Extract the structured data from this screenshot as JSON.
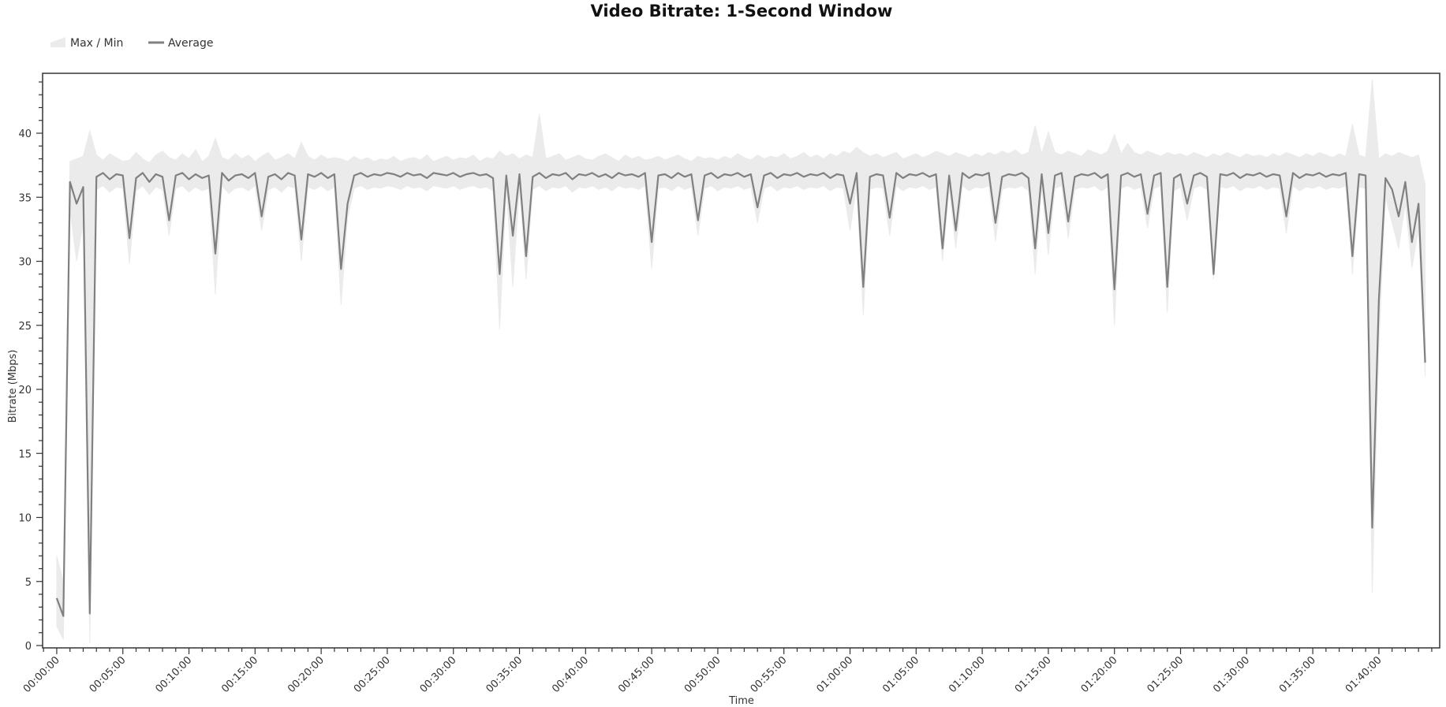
{
  "chart_data": {
    "type": "area",
    "title": "Video Bitrate: 1-Second Window",
    "xlabel": "Time",
    "ylabel": "Bitrate (Mbps)",
    "ylim": [
      0,
      44.7
    ],
    "xlim_minutes": [
      -1.07,
      104.6
    ],
    "y_ticks": [
      0,
      5,
      10,
      15,
      20,
      25,
      30,
      35,
      40
    ],
    "x_ticks": [
      "00:00:00",
      "00:05:00",
      "00:10:00",
      "00:15:00",
      "00:20:00",
      "00:25:00",
      "00:30:00",
      "00:35:00",
      "00:40:00",
      "00:45:00",
      "00:50:00",
      "00:55:00",
      "01:00:00",
      "01:05:00",
      "01:10:00",
      "01:15:00",
      "01:20:00",
      "01:25:00",
      "01:30:00",
      "01:35:00",
      "01:40:00"
    ],
    "grid": false,
    "legend": {
      "placement": "top-left",
      "entries": [
        "Max / Min",
        "Average"
      ]
    },
    "colors": {
      "band": "#ebebeb",
      "average": "#808080",
      "axis": "#333333"
    },
    "series": [
      {
        "name": "Max / Min",
        "kind": "band",
        "max": [
          7.0,
          5.0,
          37.8,
          38.0,
          38.2,
          40.2,
          38.3,
          37.9,
          38.4,
          38.1,
          37.8,
          37.9,
          38.5,
          38.0,
          37.7,
          38.3,
          38.6,
          38.1,
          37.9,
          38.4,
          38.0,
          38.7,
          37.8,
          38.2,
          39.6,
          38.1,
          37.9,
          38.4,
          38.0,
          38.3,
          37.8,
          38.2,
          38.5,
          37.9,
          38.1,
          38.4,
          38.0,
          39.3,
          38.2,
          37.9,
          38.3,
          38.0,
          38.1,
          38.0,
          37.8,
          38.2,
          37.9,
          38.1,
          37.8,
          38.0,
          37.9,
          38.2,
          37.8,
          38.0,
          38.1,
          37.9,
          38.3,
          37.8,
          38.0,
          38.2,
          37.9,
          38.1,
          38.0,
          38.3,
          37.8,
          38.1,
          38.0,
          38.6,
          38.2,
          38.4,
          38.0,
          38.3,
          38.1,
          41.5,
          38.0,
          38.2,
          38.4,
          37.9,
          38.1,
          38.3,
          38.0,
          37.9,
          38.2,
          38.4,
          38.1,
          37.8,
          38.3,
          38.0,
          38.2,
          37.9,
          38.0,
          38.2,
          37.9,
          38.1,
          38.3,
          38.0,
          37.8,
          38.2,
          38.0,
          38.1,
          37.9,
          38.2,
          38.0,
          38.4,
          38.1,
          37.9,
          38.3,
          38.0,
          38.2,
          38.1,
          38.4,
          38.0,
          38.2,
          38.5,
          38.1,
          38.3,
          38.0,
          38.4,
          38.2,
          38.6,
          38.4,
          38.9,
          38.5,
          38.2,
          38.4,
          38.1,
          38.3,
          38.5,
          38.0,
          38.2,
          38.4,
          38.1,
          38.3,
          38.6,
          38.4,
          38.2,
          38.5,
          38.3,
          38.1,
          38.4,
          38.2,
          38.5,
          38.3,
          38.6,
          38.4,
          38.7,
          38.3,
          38.5,
          40.6,
          38.4,
          40.1,
          38.5,
          38.3,
          38.6,
          38.4,
          38.2,
          38.7,
          38.5,
          38.3,
          38.6,
          39.9,
          38.4,
          39.2,
          38.5,
          38.3,
          38.6,
          38.4,
          38.2,
          38.5,
          38.3,
          38.4,
          38.2,
          38.5,
          38.3,
          38.1,
          38.4,
          38.2,
          38.5,
          38.3,
          38.1,
          38.4,
          38.2,
          38.3,
          38.1,
          38.4,
          38.2,
          38.5,
          38.3,
          38.1,
          38.4,
          38.2,
          38.5,
          38.3,
          38.1,
          38.4,
          38.2,
          40.7,
          38.3,
          38.1,
          44.2,
          38.0,
          38.4,
          38.2,
          38.5,
          38.3,
          38.1,
          38.3,
          36.0
        ],
        "min": [
          1.5,
          0.5,
          34.0,
          30.0,
          33.0,
          0.2,
          35.6,
          35.9,
          35.4,
          35.8,
          35.7,
          29.8,
          35.5,
          35.9,
          35.2,
          35.8,
          35.6,
          32.0,
          35.7,
          35.9,
          35.4,
          35.8,
          35.5,
          35.7,
          27.4,
          35.9,
          35.3,
          35.7,
          35.8,
          35.5,
          35.9,
          32.4,
          35.6,
          35.8,
          35.4,
          35.9,
          35.7,
          30.0,
          35.8,
          35.6,
          35.9,
          35.5,
          35.8,
          26.6,
          33.4,
          35.7,
          35.9,
          35.6,
          35.8,
          35.7,
          35.9,
          35.8,
          35.6,
          35.9,
          35.7,
          35.8,
          35.5,
          35.9,
          35.8,
          35.7,
          35.9,
          35.6,
          35.8,
          35.9,
          35.7,
          35.8,
          35.5,
          24.7,
          35.7,
          28.0,
          35.8,
          28.6,
          35.6,
          35.9,
          35.5,
          35.8,
          35.7,
          35.9,
          35.4,
          35.8,
          35.7,
          35.9,
          35.6,
          35.8,
          35.5,
          35.9,
          35.7,
          35.8,
          35.6,
          35.9,
          29.4,
          35.7,
          35.8,
          35.5,
          35.9,
          35.6,
          35.8,
          32.0,
          35.7,
          35.9,
          35.5,
          35.8,
          35.7,
          35.9,
          35.6,
          35.8,
          33.0,
          35.7,
          35.9,
          35.5,
          35.8,
          35.7,
          35.9,
          35.6,
          35.8,
          35.7,
          35.9,
          35.5,
          35.8,
          35.7,
          32.4,
          35.9,
          25.8,
          35.6,
          35.8,
          35.7,
          32.0,
          35.9,
          35.5,
          35.8,
          35.7,
          35.9,
          35.6,
          35.8,
          30.0,
          35.7,
          31.0,
          35.9,
          35.5,
          35.8,
          35.7,
          35.9,
          31.6,
          35.6,
          35.8,
          35.7,
          35.9,
          35.5,
          29.0,
          35.8,
          30.5,
          35.7,
          35.9,
          31.8,
          35.6,
          35.8,
          35.7,
          35.9,
          35.5,
          35.8,
          25.0,
          35.7,
          35.9,
          35.6,
          35.8,
          32.6,
          35.7,
          35.9,
          26.0,
          35.5,
          35.8,
          33.2,
          35.7,
          35.9,
          35.6,
          28.6,
          35.8,
          35.7,
          35.9,
          35.5,
          35.8,
          35.7,
          35.9,
          35.6,
          35.8,
          35.7,
          32.2,
          35.9,
          35.5,
          35.8,
          35.7,
          35.9,
          35.6,
          35.8,
          35.7,
          35.9,
          29.0,
          35.8,
          35.7,
          4.1,
          23.5,
          35.0,
          33.0,
          31.0,
          34.5,
          29.5,
          32.5,
          21.0
        ]
      },
      {
        "name": "Average",
        "kind": "line",
        "values": [
          3.7,
          2.3,
          36.2,
          34.5,
          35.8,
          2.5,
          36.6,
          36.9,
          36.4,
          36.8,
          36.7,
          31.8,
          36.5,
          36.9,
          36.2,
          36.8,
          36.6,
          33.2,
          36.7,
          36.9,
          36.4,
          36.8,
          36.5,
          36.7,
          30.6,
          36.9,
          36.3,
          36.7,
          36.8,
          36.5,
          36.9,
          33.5,
          36.6,
          36.8,
          36.4,
          36.9,
          36.7,
          31.7,
          36.8,
          36.6,
          36.9,
          36.5,
          36.8,
          29.4,
          34.5,
          36.7,
          36.9,
          36.6,
          36.8,
          36.7,
          36.9,
          36.8,
          36.6,
          36.9,
          36.7,
          36.8,
          36.5,
          36.9,
          36.8,
          36.7,
          36.9,
          36.6,
          36.8,
          36.9,
          36.7,
          36.8,
          36.5,
          29.0,
          36.7,
          32.0,
          36.8,
          30.4,
          36.6,
          36.9,
          36.5,
          36.8,
          36.7,
          36.9,
          36.4,
          36.8,
          36.7,
          36.9,
          36.6,
          36.8,
          36.5,
          36.9,
          36.7,
          36.8,
          36.6,
          36.9,
          31.5,
          36.7,
          36.8,
          36.5,
          36.9,
          36.6,
          36.8,
          33.2,
          36.7,
          36.9,
          36.5,
          36.8,
          36.7,
          36.9,
          36.6,
          36.8,
          34.2,
          36.7,
          36.9,
          36.5,
          36.8,
          36.7,
          36.9,
          36.6,
          36.8,
          36.7,
          36.9,
          36.5,
          36.8,
          36.7,
          34.5,
          36.9,
          28.0,
          36.6,
          36.8,
          36.7,
          33.4,
          36.9,
          36.5,
          36.8,
          36.7,
          36.9,
          36.6,
          36.8,
          31.0,
          36.7,
          32.4,
          36.9,
          36.5,
          36.8,
          36.7,
          36.9,
          33.0,
          36.6,
          36.8,
          36.7,
          36.9,
          36.5,
          31.0,
          36.8,
          32.2,
          36.7,
          36.9,
          33.1,
          36.6,
          36.8,
          36.7,
          36.9,
          36.5,
          36.8,
          27.8,
          36.7,
          36.9,
          36.6,
          36.8,
          33.7,
          36.7,
          36.9,
          28.0,
          36.5,
          36.8,
          34.5,
          36.7,
          36.9,
          36.6,
          29.0,
          36.8,
          36.7,
          36.9,
          36.5,
          36.8,
          36.7,
          36.9,
          36.6,
          36.8,
          36.7,
          33.5,
          36.9,
          36.5,
          36.8,
          36.7,
          36.9,
          36.6,
          36.8,
          36.7,
          36.9,
          30.4,
          36.8,
          36.7,
          9.2,
          27.0,
          36.5,
          35.6,
          33.5,
          36.2,
          31.5,
          34.5,
          22.1
        ]
      }
    ],
    "x": [
      "00:00:00",
      "00:00:30",
      "00:01:00",
      "00:01:30",
      "00:02:00",
      "00:02:30",
      "00:03:00",
      "00:03:30",
      "00:04:00",
      "00:04:30",
      "00:05:00",
      "00:05:30",
      "00:06:00",
      "00:06:30",
      "00:07:00",
      "00:07:30",
      "00:08:00",
      "00:08:30",
      "00:09:00",
      "00:09:30",
      "00:10:00",
      "00:10:30",
      "00:11:00",
      "00:11:30",
      "00:12:00",
      "00:12:30",
      "00:13:00",
      "00:13:30",
      "00:14:00",
      "00:14:30",
      "00:15:00",
      "00:15:30",
      "00:16:00",
      "00:16:30",
      "00:17:00",
      "00:17:30",
      "00:18:00",
      "00:18:30",
      "00:19:00",
      "00:19:30",
      "00:20:00",
      "00:20:30",
      "00:21:00",
      "00:21:30",
      "00:22:00",
      "00:22:30",
      "00:23:00",
      "00:23:30",
      "00:24:00",
      "00:24:30",
      "00:25:00",
      "00:25:30",
      "00:26:00",
      "00:26:30",
      "00:27:00",
      "00:27:30",
      "00:28:00",
      "00:28:30",
      "00:29:00",
      "00:29:30",
      "00:30:00",
      "00:30:30",
      "00:31:00",
      "00:31:30",
      "00:32:00",
      "00:32:30",
      "00:33:00",
      "00:33:30",
      "00:34:00",
      "00:34:30",
      "00:35:00",
      "00:35:30",
      "00:36:00",
      "00:36:30",
      "00:37:00",
      "00:37:30",
      "00:38:00",
      "00:38:30",
      "00:39:00",
      "00:39:30",
      "00:40:00",
      "00:40:30",
      "00:41:00",
      "00:41:30",
      "00:42:00",
      "00:42:30",
      "00:43:00",
      "00:43:30",
      "00:44:00",
      "00:44:30",
      "00:45:00",
      "00:45:30",
      "00:46:00",
      "00:46:30",
      "00:47:00",
      "00:47:30",
      "00:48:00",
      "00:48:30",
      "00:49:00",
      "00:49:30",
      "00:50:00",
      "00:50:30",
      "00:51:00",
      "00:51:30",
      "00:52:00",
      "00:52:30",
      "00:53:00",
      "00:53:30",
      "00:54:00",
      "00:54:30",
      "00:55:00",
      "00:55:30",
      "00:56:00",
      "00:56:30",
      "00:57:00",
      "00:57:30",
      "00:58:00",
      "00:58:30",
      "00:59:00",
      "00:59:30",
      "01:00:00",
      "01:00:30",
      "01:01:00",
      "01:01:30",
      "01:02:00",
      "01:02:30",
      "01:03:00",
      "01:03:30",
      "01:04:00",
      "01:04:30",
      "01:05:00",
      "01:05:30",
      "01:06:00",
      "01:06:30",
      "01:07:00",
      "01:07:30",
      "01:08:00",
      "01:08:30",
      "01:09:00",
      "01:09:30",
      "01:10:00",
      "01:10:30",
      "01:11:00",
      "01:11:30",
      "01:12:00",
      "01:12:30",
      "01:13:00",
      "01:13:30",
      "01:14:00",
      "01:14:30",
      "01:15:00",
      "01:15:30",
      "01:16:00",
      "01:16:30",
      "01:17:00",
      "01:17:30",
      "01:18:00",
      "01:18:30",
      "01:19:00",
      "01:19:30",
      "01:20:00",
      "01:20:30",
      "01:21:00",
      "01:21:30",
      "01:22:00",
      "01:22:30",
      "01:23:00",
      "01:23:30",
      "01:24:00",
      "01:24:30",
      "01:25:00",
      "01:25:30",
      "01:26:00",
      "01:26:30",
      "01:27:00",
      "01:27:30",
      "01:28:00",
      "01:28:30",
      "01:29:00",
      "01:29:30",
      "01:30:00",
      "01:30:30",
      "01:31:00",
      "01:31:30",
      "01:32:00",
      "01:32:30",
      "01:33:00",
      "01:33:30",
      "01:34:00",
      "01:34:30",
      "01:35:00",
      "01:35:30",
      "01:36:00",
      "01:36:30",
      "01:37:00",
      "01:37:30",
      "01:38:00",
      "01:38:30",
      "01:39:00",
      "01:39:30",
      "01:40:00",
      "01:40:30",
      "01:41:00",
      "01:41:30",
      "01:42:00",
      "01:42:30",
      "01:43:00",
      "01:43:30"
    ]
  }
}
